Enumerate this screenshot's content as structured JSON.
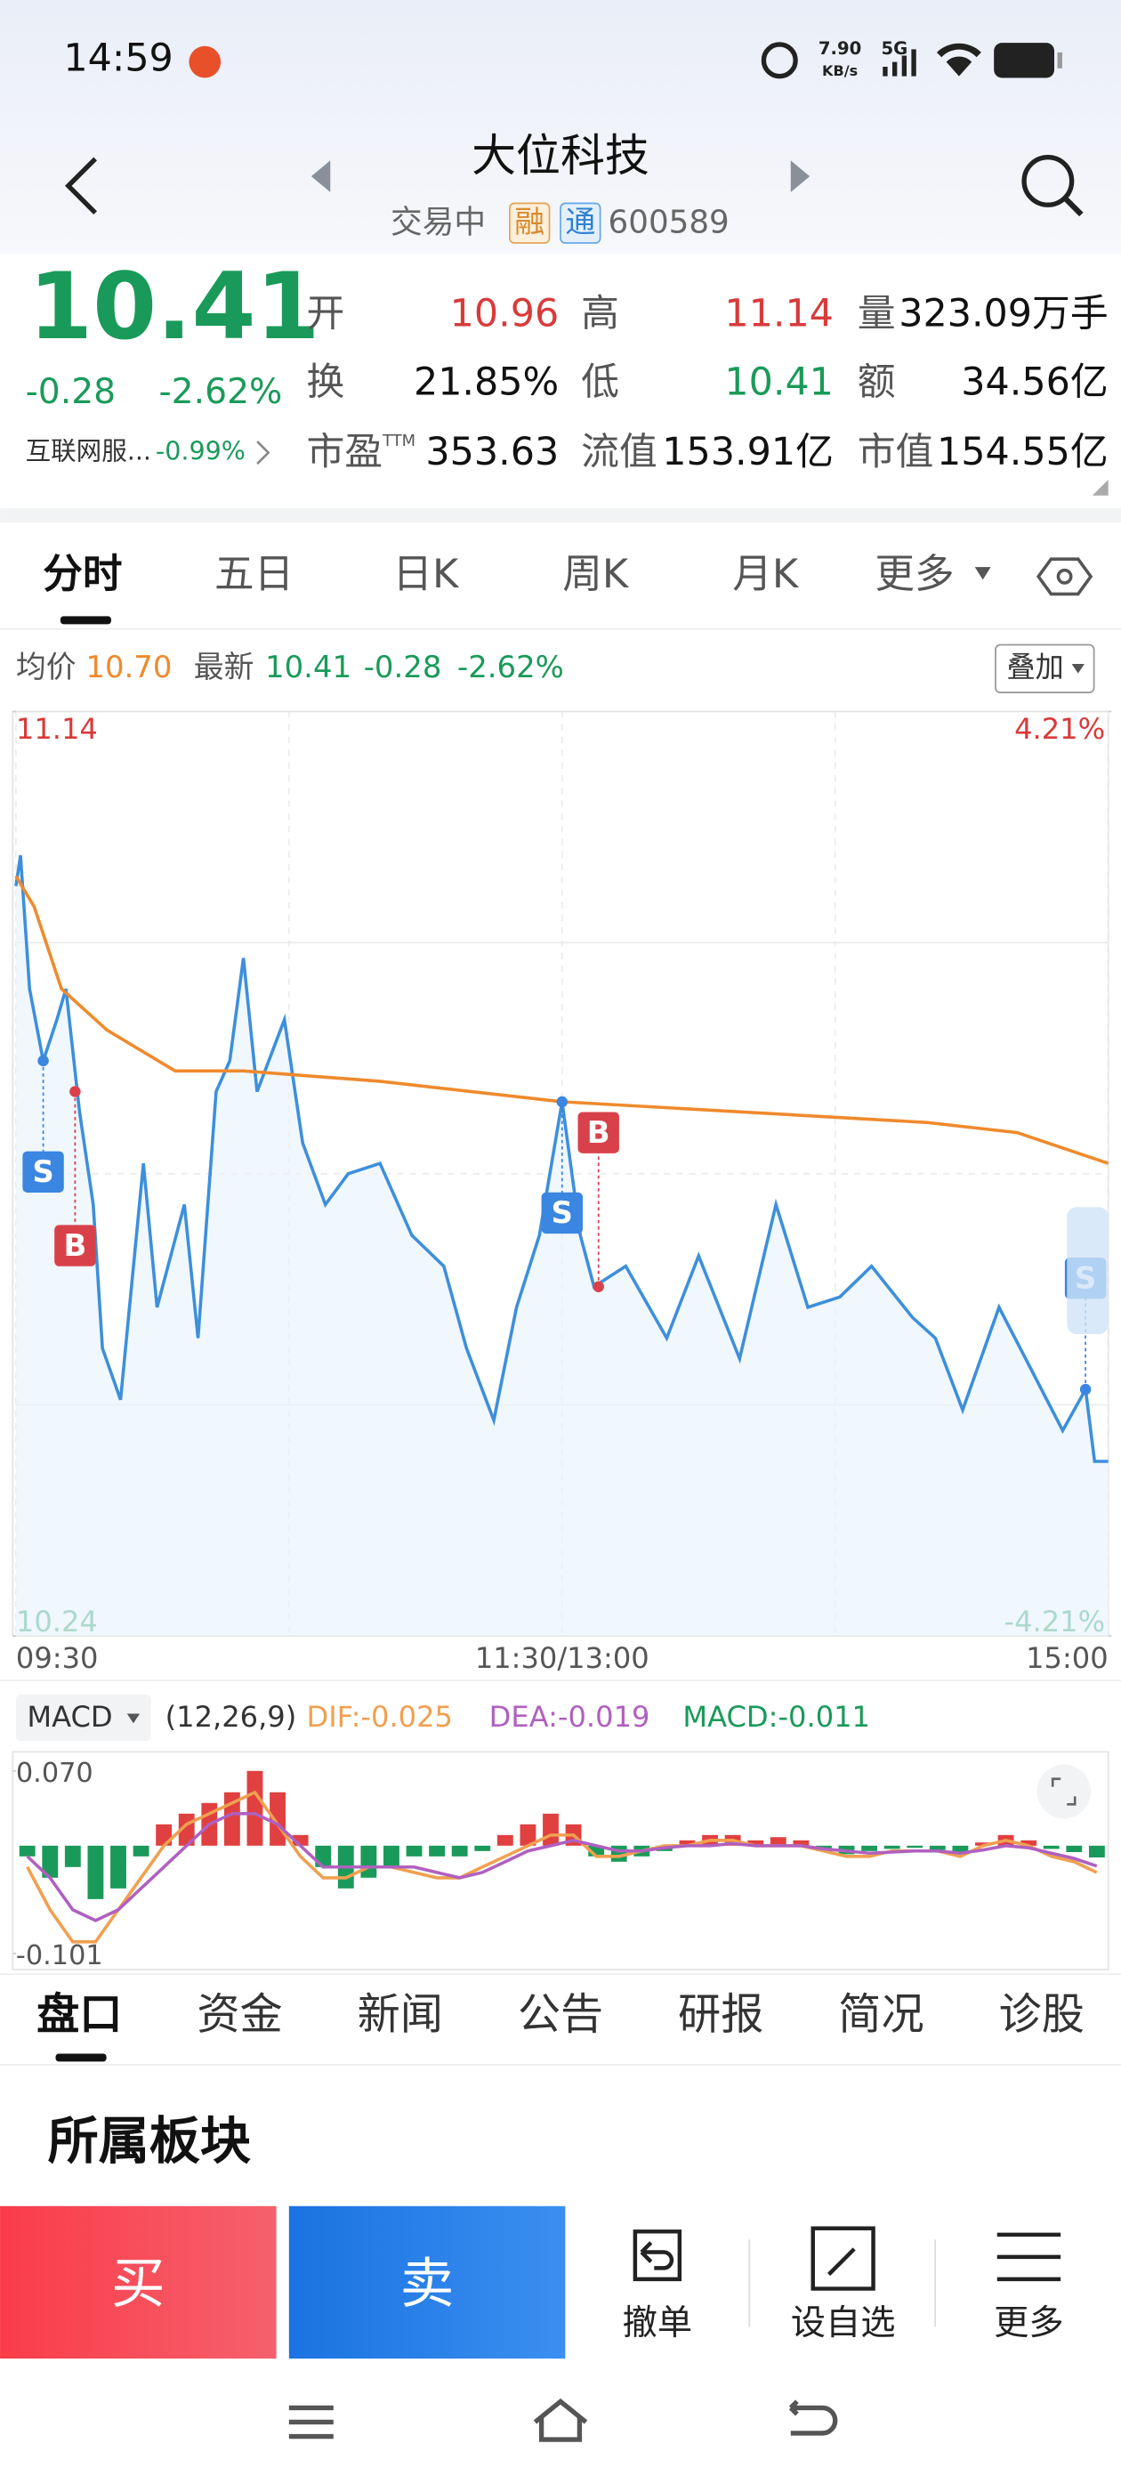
{
  "status_bar": {
    "time": "14:59",
    "net_speed": "7.90",
    "net_unit": "KB/s",
    "signal": "5G"
  },
  "header": {
    "title": "大位科技",
    "status": "交易中",
    "badge_1": "融",
    "badge_2": "通",
    "code": "600589"
  },
  "quote": {
    "price": "10.41",
    "change": "-0.28",
    "change_pct": "-2.62%",
    "sector": "互联网服...",
    "sector_pct": "-0.99%",
    "fields": [
      {
        "label": "开",
        "value": "10.96"
      },
      {
        "label": "高",
        "value": "11.14"
      },
      {
        "label": "量",
        "value": "323.09万手"
      },
      {
        "label": "换",
        "value": "21.85%"
      },
      {
        "label": "低",
        "value": "10.41"
      },
      {
        "label": "额",
        "value": "34.56亿"
      },
      {
        "label": "市盈",
        "sup": "TTM",
        "value": "353.63"
      },
      {
        "label": "流值",
        "value": "153.91亿"
      },
      {
        "label": "市值",
        "value": "154.55亿"
      }
    ]
  },
  "tabs": [
    "分时",
    "五日",
    "日K",
    "周K",
    "月K",
    "更多"
  ],
  "legend": {
    "avg_label": "均价",
    "avg": "10.70",
    "last_label": "最新",
    "last": "10.41",
    "change": "-0.28",
    "change_pct": "-2.62%",
    "overlay": "叠加"
  },
  "macd_header": {
    "name": "MACD",
    "params": "(12,26,9)",
    "dif": "DIF:-0.025",
    "dea": "DEA:-0.019",
    "macd": "MACD:-0.011"
  },
  "bottom_tabs": [
    "盘口",
    "资金",
    "新闻",
    "公告",
    "研报",
    "简况",
    "诊股"
  ],
  "section_title": "所属板块",
  "actions": {
    "buy": "买",
    "sell": "卖",
    "cancel": "撤单",
    "watch": "设自选",
    "more": "更多"
  },
  "chart_data": [
    {
      "type": "line",
      "xlim": [
        0,
        240
      ],
      "xticks": [
        {
          "value": 0,
          "label": "09:30"
        },
        {
          "value": 120,
          "label": "11:30/13:00"
        },
        {
          "value": 240,
          "label": "15:00"
        }
      ],
      "ylim": [
        10.24,
        11.14
      ],
      "yticks": [
        11.14,
        10.24
      ],
      "y2lim": [
        -4.21,
        4.21
      ],
      "y2ticks": [
        {
          "value": 4.21,
          "label": "4.21%"
        },
        {
          "value": -4.21,
          "label": "-4.21%"
        }
      ],
      "grid": true,
      "series": [
        {
          "color": "#3d8fdb",
          "x": [
            0,
            1,
            3,
            6,
            9,
            11,
            14,
            17,
            19,
            23,
            28,
            31,
            37,
            40,
            44,
            47,
            50,
            53,
            59,
            63,
            68,
            73,
            80,
            87,
            94,
            99,
            105,
            110,
            115,
            120,
            124,
            127,
            134,
            143,
            150,
            159,
            167,
            174,
            181,
            188,
            197,
            202,
            208,
            216,
            223,
            230,
            235,
            237,
            240
          ],
          "values": [
            10.97,
            11.0,
            10.87,
            10.8,
            10.84,
            10.87,
            10.75,
            10.66,
            10.52,
            10.47,
            10.7,
            10.56,
            10.66,
            10.53,
            10.77,
            10.8,
            10.9,
            10.77,
            10.84,
            10.72,
            10.66,
            10.69,
            10.7,
            10.63,
            10.6,
            10.52,
            10.45,
            10.56,
            10.63,
            10.76,
            10.63,
            10.58,
            10.6,
            10.53,
            10.61,
            10.51,
            10.66,
            10.56,
            10.57,
            10.6,
            10.55,
            10.53,
            10.46,
            10.56,
            10.5,
            10.44,
            10.48,
            10.41,
            10.41
          ]
        },
        {
          "color": "#ef8a2c",
          "axis": "y",
          "x": [
            0,
            4,
            10,
            20,
            35,
            50,
            80,
            120,
            160,
            200,
            220,
            240
          ],
          "values": [
            10.98,
            10.95,
            10.87,
            10.83,
            10.79,
            10.79,
            10.78,
            10.76,
            10.75,
            10.74,
            10.73,
            10.7
          ]
        }
      ],
      "markers": [
        {
          "label": "S",
          "x": 6,
          "price": 10.8
        },
        {
          "label": "B",
          "x": 13,
          "price": 10.77
        },
        {
          "label": "S",
          "x": 120,
          "price": 10.76
        },
        {
          "label": "B",
          "x": 128,
          "price": 10.58
        },
        {
          "label": "S",
          "x": 235,
          "price": 10.48
        }
      ]
    },
    {
      "type": "bar",
      "xlim": [
        0,
        240
      ],
      "ylim": [
        -0.101,
        0.07
      ],
      "yticks": [
        {
          "value": 0.07,
          "label": "0.070"
        },
        -0.101
      ],
      "x": [
        2.5,
        7.5,
        12.5,
        17.5,
        22.5,
        27.5,
        32.5,
        37.5,
        42.5,
        47.5,
        52.5,
        57.5,
        62.5,
        67.5,
        72.5,
        77.5,
        82.5,
        87.5,
        92.5,
        97.5,
        102.5,
        107.5,
        112.5,
        117.5,
        122.5,
        127.5,
        132.5,
        137.5,
        142.5,
        147.5,
        152.5,
        157.5,
        162.5,
        167.5,
        172.5,
        177.5,
        182.5,
        187.5,
        192.5,
        197.5,
        202.5,
        207.5,
        212.5,
        217.5,
        222.5,
        227.5,
        232.5,
        237.5
      ],
      "up_color": "#e0403f",
      "down_color": "#1a9a5a",
      "values": [
        -0.01,
        -0.03,
        -0.02,
        -0.05,
        -0.04,
        -0.01,
        0.02,
        0.03,
        0.04,
        0.05,
        0.07,
        0.05,
        0.01,
        -0.02,
        -0.04,
        -0.03,
        -0.02,
        -0.01,
        -0.01,
        -0.01,
        -0.005,
        0.01,
        0.02,
        0.03,
        0.02,
        -0.01,
        -0.015,
        -0.01,
        -0.005,
        0.005,
        0.01,
        0.01,
        0.005,
        0.008,
        0.005,
        -0.005,
        -0.008,
        -0.005,
        -0.003,
        -0.002,
        -0.004,
        -0.006,
        0.003,
        0.01,
        0.005,
        -0.003,
        -0.006,
        -0.011
      ],
      "series": [
        {
          "color": "#f0a050",
          "values": [
            -0.02,
            -0.06,
            -0.09,
            -0.09,
            -0.06,
            -0.03,
            0.0,
            0.02,
            0.03,
            0.04,
            0.05,
            0.02,
            -0.01,
            -0.03,
            -0.03,
            -0.02,
            -0.02,
            -0.025,
            -0.03,
            -0.03,
            -0.02,
            -0.01,
            0.0,
            0.01,
            0.01,
            -0.01,
            -0.01,
            -0.005,
            0.0,
            0.0,
            0.005,
            0.005,
            0.0,
            0.0,
            0.0,
            -0.005,
            -0.01,
            -0.01,
            -0.005,
            -0.005,
            -0.005,
            -0.01,
            0.0,
            0.005,
            0.0,
            -0.01,
            -0.015,
            -0.025
          ]
        },
        {
          "color": "#b060c0",
          "values": [
            -0.01,
            -0.03,
            -0.06,
            -0.07,
            -0.06,
            -0.04,
            -0.02,
            0.0,
            0.02,
            0.03,
            0.03,
            0.02,
            0.0,
            -0.02,
            -0.02,
            -0.02,
            -0.02,
            -0.02,
            -0.025,
            -0.03,
            -0.025,
            -0.015,
            -0.005,
            0.0,
            0.005,
            0.0,
            -0.005,
            -0.005,
            -0.002,
            0.0,
            0.0,
            0.002,
            0.0,
            0.0,
            0.0,
            -0.003,
            -0.005,
            -0.007,
            -0.006,
            -0.005,
            -0.005,
            -0.007,
            -0.004,
            0.0,
            -0.002,
            -0.007,
            -0.012,
            -0.019
          ]
        }
      ]
    }
  ]
}
